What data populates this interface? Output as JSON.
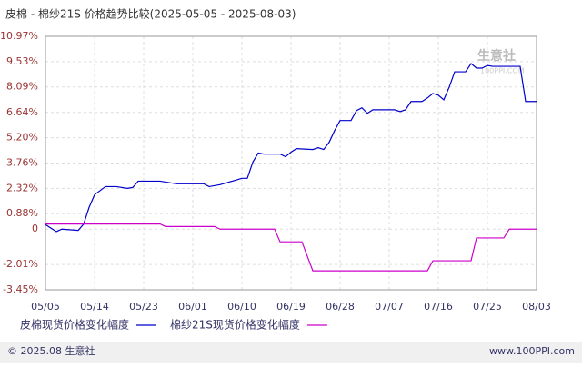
{
  "chart_data": {
    "type": "line",
    "title": "皮棉 - 棉纱21S 价格趋势比较(2025-05-05 - 2025-08-03)",
    "watermark": "生意社",
    "watermark_url": "100PPI.COM",
    "footer_left": "© 2025.08 生意社",
    "footer_right": "www.100PPI.com",
    "xlim": [
      0,
      90
    ],
    "xticks": [
      {
        "value": 0,
        "label": "05/05"
      },
      {
        "value": 9,
        "label": "05/14"
      },
      {
        "value": 18,
        "label": "05/23"
      },
      {
        "value": 27,
        "label": "06/01"
      },
      {
        "value": 36,
        "label": "06/10"
      },
      {
        "value": 45,
        "label": "06/19"
      },
      {
        "value": 54,
        "label": "06/28"
      },
      {
        "value": 63,
        "label": "07/07"
      },
      {
        "value": 72,
        "label": "07/16"
      },
      {
        "value": 81,
        "label": "07/25"
      },
      {
        "value": 90,
        "label": "08/03"
      }
    ],
    "ylim": [
      -3.45,
      10.97
    ],
    "yticks": [
      {
        "value": 10.97,
        "label": "10.97%"
      },
      {
        "value": 9.53,
        "label": "9.53%"
      },
      {
        "value": 8.09,
        "label": "8.09%"
      },
      {
        "value": 6.64,
        "label": "6.64%"
      },
      {
        "value": 5.2,
        "label": "5.20%"
      },
      {
        "value": 3.76,
        "label": "3.76%"
      },
      {
        "value": 2.32,
        "label": "2.32%"
      },
      {
        "value": 0.88,
        "label": "0.88%"
      },
      0,
      {
        "value": -2.01,
        "label": "-2.01%"
      },
      {
        "value": -3.45,
        "label": "-3.45%"
      }
    ],
    "grid": true,
    "series": [
      {
        "name": "皮棉现货价格变化幅度",
        "color": "#0000cc",
        "x": [
          0,
          2,
          3,
          6,
          7,
          8,
          9,
          11,
          13,
          15,
          16,
          17,
          21,
          24,
          29,
          30,
          32,
          36,
          37,
          38,
          39,
          40,
          43,
          44,
          45,
          46,
          49,
          50,
          51,
          52,
          53,
          54,
          56,
          57,
          58,
          59,
          60,
          64,
          65,
          66,
          67,
          69,
          70,
          71,
          72,
          73,
          74,
          75,
          77,
          78,
          79,
          80,
          81,
          82,
          87,
          88,
          90
        ],
        "values": [
          0.26,
          -0.14,
          0,
          -0.07,
          0.29,
          1.24,
          1.96,
          2.42,
          2.42,
          2.32,
          2.37,
          2.73,
          2.73,
          2.58,
          2.58,
          2.42,
          2.53,
          2.89,
          2.89,
          3.81,
          4.33,
          4.27,
          4.27,
          4.12,
          4.38,
          4.58,
          4.53,
          4.63,
          4.53,
          4.94,
          5.61,
          6.18,
          6.18,
          6.74,
          6.9,
          6.59,
          6.79,
          6.79,
          6.69,
          6.79,
          7.26,
          7.26,
          7.46,
          7.72,
          7.62,
          7.36,
          8.08,
          8.95,
          8.95,
          9.42,
          9.16,
          9.16,
          9.31,
          9.26,
          9.26,
          7.26,
          7.26
        ]
      },
      {
        "name": "棉纱21S现货价格变化幅度",
        "color": "#cc00cc",
        "x": [
          0,
          21,
          22,
          31,
          32,
          42,
          43,
          47,
          49,
          70,
          71,
          78,
          79,
          84,
          85,
          90
        ],
        "values": [
          0.29,
          0.29,
          0.15,
          0.15,
          0,
          0,
          -0.72,
          -0.72,
          -2.37,
          -2.37,
          -1.8,
          -1.8,
          -0.5,
          -0.5,
          0,
          0
        ]
      }
    ]
  }
}
